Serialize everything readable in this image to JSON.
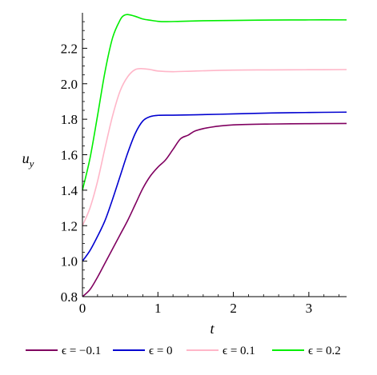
{
  "chart_data": {
    "type": "line",
    "xlabel": "t",
    "ylabel_main": "u",
    "ylabel_sub": "y",
    "xlim": [
      0,
      3.5
    ],
    "ylim": [
      0.8,
      2.4
    ],
    "xticks": [
      0,
      1,
      2,
      3
    ],
    "xtick_labels": [
      "0",
      "1",
      "2",
      "3"
    ],
    "yticks": [
      0.8,
      1.0,
      1.2,
      1.4,
      1.6,
      1.8,
      2.0,
      2.2
    ],
    "ytick_labels": [
      "0.8",
      "1.0",
      "1.2",
      "1.4",
      "1.6",
      "1.8",
      "2.0",
      "2.2"
    ],
    "grid": false,
    "legend_position": "bottom",
    "series": [
      {
        "name": "ϵ = −0.1",
        "color": "#800060",
        "points": [
          [
            0,
            0.8
          ],
          [
            0.1,
            0.84
          ],
          [
            0.2,
            0.91
          ],
          [
            0.3,
            0.99
          ],
          [
            0.4,
            1.07
          ],
          [
            0.5,
            1.15
          ],
          [
            0.6,
            1.23
          ],
          [
            0.7,
            1.32
          ],
          [
            0.8,
            1.41
          ],
          [
            0.9,
            1.48
          ],
          [
            1.0,
            1.53
          ],
          [
            1.1,
            1.57
          ],
          [
            1.2,
            1.63
          ],
          [
            1.3,
            1.69
          ],
          [
            1.4,
            1.71
          ],
          [
            1.5,
            1.735
          ],
          [
            1.7,
            1.755
          ],
          [
            2.0,
            1.768
          ],
          [
            2.5,
            1.773
          ],
          [
            3.0,
            1.775
          ],
          [
            3.5,
            1.776
          ]
        ]
      },
      {
        "name": "ϵ = 0",
        "color": "#0000d0",
        "points": [
          [
            0,
            1.0
          ],
          [
            0.1,
            1.06
          ],
          [
            0.2,
            1.14
          ],
          [
            0.3,
            1.23
          ],
          [
            0.4,
            1.35
          ],
          [
            0.5,
            1.48
          ],
          [
            0.6,
            1.61
          ],
          [
            0.7,
            1.72
          ],
          [
            0.8,
            1.79
          ],
          [
            0.9,
            1.815
          ],
          [
            1.0,
            1.822
          ],
          [
            1.2,
            1.823
          ],
          [
            1.5,
            1.825
          ],
          [
            2.0,
            1.83
          ],
          [
            2.5,
            1.835
          ],
          [
            3.0,
            1.838
          ],
          [
            3.5,
            1.84
          ]
        ]
      },
      {
        "name": "ϵ = 0.1",
        "color": "#ffb6c8",
        "points": [
          [
            0,
            1.2
          ],
          [
            0.1,
            1.3
          ],
          [
            0.2,
            1.45
          ],
          [
            0.3,
            1.64
          ],
          [
            0.4,
            1.82
          ],
          [
            0.5,
            1.96
          ],
          [
            0.6,
            2.04
          ],
          [
            0.7,
            2.08
          ],
          [
            0.8,
            2.085
          ],
          [
            0.9,
            2.08
          ],
          [
            1.0,
            2.072
          ],
          [
            1.2,
            2.068
          ],
          [
            1.5,
            2.072
          ],
          [
            2.0,
            2.077
          ],
          [
            2.5,
            2.078
          ],
          [
            3.0,
            2.079
          ],
          [
            3.5,
            2.08
          ]
        ]
      },
      {
        "name": "ϵ = 0.2",
        "color": "#00ee00",
        "points": [
          [
            0,
            1.4
          ],
          [
            0.1,
            1.58
          ],
          [
            0.2,
            1.82
          ],
          [
            0.3,
            2.07
          ],
          [
            0.4,
            2.26
          ],
          [
            0.5,
            2.36
          ],
          [
            0.55,
            2.385
          ],
          [
            0.6,
            2.39
          ],
          [
            0.7,
            2.38
          ],
          [
            0.8,
            2.365
          ],
          [
            0.9,
            2.358
          ],
          [
            1.0,
            2.352
          ],
          [
            1.1,
            2.35
          ],
          [
            1.3,
            2.352
          ],
          [
            1.6,
            2.355
          ],
          [
            2.0,
            2.357
          ],
          [
            2.5,
            2.359
          ],
          [
            3.0,
            2.36
          ],
          [
            3.5,
            2.36
          ]
        ]
      }
    ]
  }
}
